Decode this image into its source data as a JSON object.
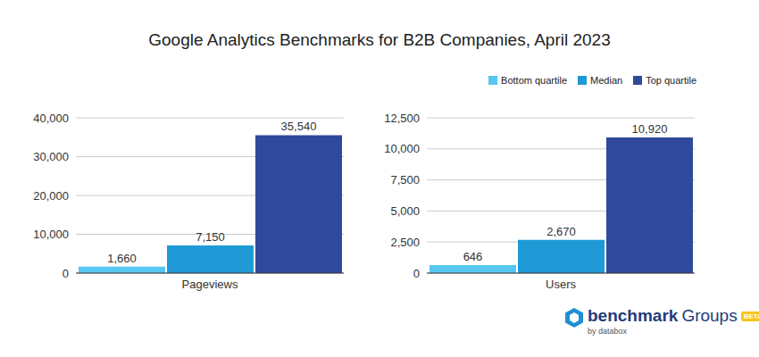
{
  "title": "Google Analytics Benchmarks for B2B Companies, April 2023",
  "legend": "top right",
  "annotations": [
    "benchmark",
    "Groups",
    "BETA",
    "by databox"
  ],
  "chart_data": [
    {
      "type": "bar",
      "categories": [
        "Pageviews"
      ],
      "series": [
        {
          "name": "Bottom quartile",
          "color": "#56c7f0",
          "values": [
            1660
          ],
          "value_labels": [
            "1,660"
          ]
        },
        {
          "name": "Median",
          "color": "#1f9ad6",
          "values": [
            7150
          ],
          "value_labels": [
            "7,150"
          ]
        },
        {
          "name": "Top quartile",
          "color": "#2f4a9a",
          "values": [
            35540
          ],
          "value_labels": [
            "35,540"
          ]
        }
      ],
      "ylim": [
        0,
        40000
      ],
      "yticks": [
        0,
        {
          "value": 10000,
          "label": "10,000"
        },
        {
          "value": 20000,
          "label": "20,000"
        },
        {
          "value": 30000,
          "label": "30,000"
        },
        {
          "value": 40000,
          "label": "40,000"
        }
      ],
      "grid": true,
      "data_labels": true
    },
    {
      "type": "bar",
      "categories": [
        "Users"
      ],
      "series": [
        {
          "name": "Bottom quartile",
          "color": "#56c7f0",
          "values": [
            646
          ]
        },
        {
          "name": "Median",
          "color": "#1f9ad6",
          "values": [
            2670
          ],
          "value_labels": [
            "2,670"
          ]
        },
        {
          "name": "Top quartile",
          "color": "#2f4a9a",
          "values": [
            10920
          ],
          "value_labels": [
            "10,920"
          ]
        }
      ],
      "ylim": [
        0,
        12500
      ],
      "yticks": [
        0,
        {
          "value": 2500,
          "label": "2,500"
        },
        {
          "value": 5000,
          "label": "5,000"
        },
        {
          "value": 7500,
          "label": "7,500"
        },
        {
          "value": 10000,
          "label": "10,000"
        },
        {
          "value": 12500,
          "label": "12,500"
        }
      ],
      "grid": true,
      "data_labels": true
    }
  ]
}
